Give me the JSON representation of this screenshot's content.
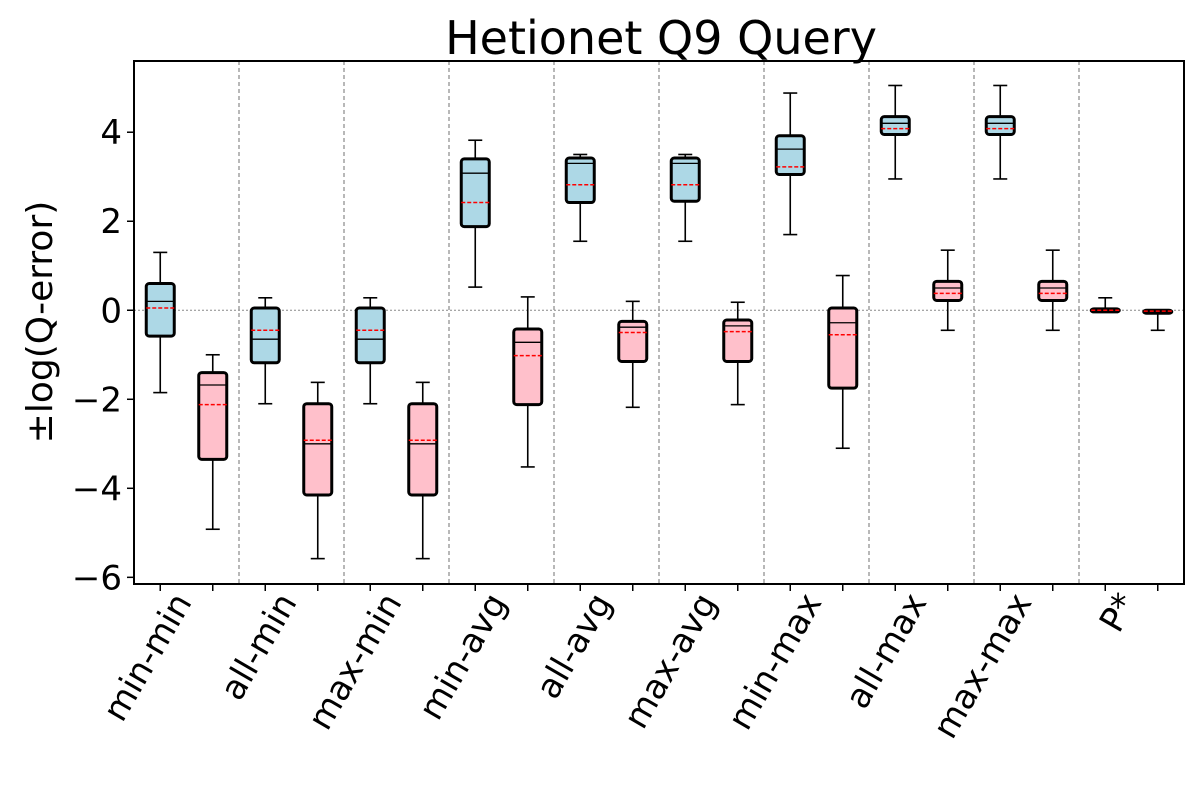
{
  "chart_data": {
    "type": "box",
    "title": "Hetionet Q9 Query",
    "xlabel": "",
    "ylabel": "±log(Q-error)",
    "ylim": [
      -6.15,
      5.6
    ],
    "yticks": [
      -6,
      -4,
      -2,
      0,
      2,
      4
    ],
    "ytick_labels": [
      "−6",
      "−4",
      "−2",
      "0",
      "2",
      "4"
    ],
    "grid": "dashed vertical separators between groups; dotted horizontal line at 0",
    "categories": [
      "min-min",
      "all-min",
      "max-min",
      "min-avg",
      "all-avg",
      "max-avg",
      "min-max",
      "all-max",
      "max-max",
      "P*"
    ],
    "series": [
      {
        "color": "#add8e6",
        "boxes": [
          {
            "whislo": -1.85,
            "q1": -0.58,
            "med": 0.2,
            "mean": 0.05,
            "q3": 0.6,
            "whishi": 1.3
          },
          {
            "whislo": -2.1,
            "q1": -1.18,
            "med": -0.65,
            "mean": -0.45,
            "q3": 0.05,
            "whishi": 0.28
          },
          {
            "whislo": -2.1,
            "q1": -1.18,
            "med": -0.65,
            "mean": -0.45,
            "q3": 0.05,
            "whishi": 0.28
          },
          {
            "whislo": 0.52,
            "q1": 1.88,
            "med": 3.08,
            "mean": 2.42,
            "q3": 3.4,
            "whishi": 3.82
          },
          {
            "whislo": 1.55,
            "q1": 2.42,
            "med": 3.3,
            "mean": 2.82,
            "q3": 3.42,
            "whishi": 3.5
          },
          {
            "whislo": 1.55,
            "q1": 2.45,
            "med": 3.3,
            "mean": 2.82,
            "q3": 3.42,
            "whishi": 3.5
          },
          {
            "whislo": 1.7,
            "q1": 3.05,
            "med": 3.62,
            "mean": 3.22,
            "q3": 3.92,
            "whishi": 4.88
          },
          {
            "whislo": 2.95,
            "q1": 3.95,
            "med": 4.2,
            "mean": 4.08,
            "q3": 4.35,
            "whishi": 5.05
          },
          {
            "whislo": 2.95,
            "q1": 3.95,
            "med": 4.2,
            "mean": 4.08,
            "q3": 4.35,
            "whishi": 5.05
          },
          {
            "whislo": 0.0,
            "q1": 0.0,
            "med": 0.0,
            "mean": 0.0,
            "q3": 0.03,
            "whishi": 0.28
          }
        ]
      },
      {
        "color": "#ffc0cb",
        "boxes": [
          {
            "whislo": -4.92,
            "q1": -3.35,
            "med": -1.68,
            "mean": -2.12,
            "q3": -1.4,
            "whishi": -1.0
          },
          {
            "whislo": -5.58,
            "q1": -4.15,
            "med": -3.0,
            "mean": -2.92,
            "q3": -2.1,
            "whishi": -1.62
          },
          {
            "whislo": -5.58,
            "q1": -4.15,
            "med": -3.0,
            "mean": -2.92,
            "q3": -2.1,
            "whishi": -1.62
          },
          {
            "whislo": -3.52,
            "q1": -2.12,
            "med": -0.72,
            "mean": -1.02,
            "q3": -0.42,
            "whishi": 0.3
          },
          {
            "whislo": -2.18,
            "q1": -1.15,
            "med": -0.38,
            "mean": -0.5,
            "q3": -0.25,
            "whishi": 0.2
          },
          {
            "whislo": -2.12,
            "q1": -1.15,
            "med": -0.35,
            "mean": -0.48,
            "q3": -0.22,
            "whishi": 0.18
          },
          {
            "whislo": -3.1,
            "q1": -1.75,
            "med": -0.28,
            "mean": -0.55,
            "q3": 0.05,
            "whishi": 0.78
          },
          {
            "whislo": -0.45,
            "q1": 0.22,
            "med": 0.5,
            "mean": 0.38,
            "q3": 0.65,
            "whishi": 1.35
          },
          {
            "whislo": -0.45,
            "q1": 0.22,
            "med": 0.5,
            "mean": 0.38,
            "q3": 0.65,
            "whishi": 1.35
          },
          {
            "whislo": -0.45,
            "q1": -0.05,
            "med": 0.0,
            "mean": -0.02,
            "q3": 0.0,
            "whishi": 0.0
          }
        ]
      }
    ]
  }
}
